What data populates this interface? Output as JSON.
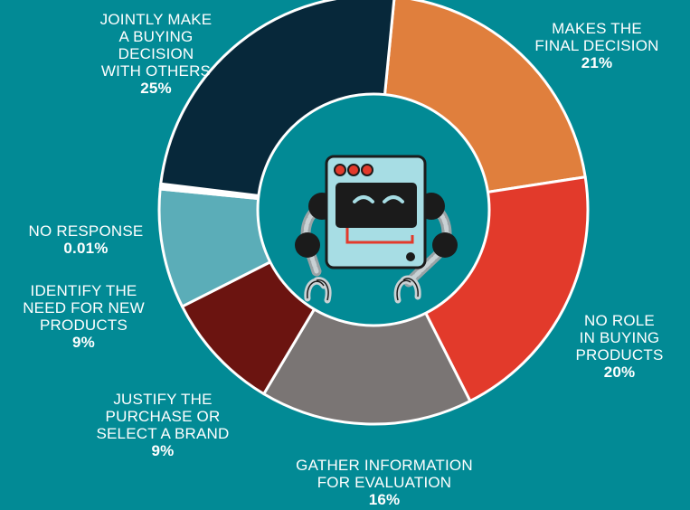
{
  "chart_data": {
    "type": "pie",
    "donut": true,
    "slices": [
      {
        "key": "final",
        "label_lines": [
          "MAKES THE",
          "FINAL DECISION"
        ],
        "value_label": "21%",
        "value": 21,
        "color": "#e07f3d"
      },
      {
        "key": "norole",
        "label_lines": [
          "NO ROLE",
          "IN BUYING",
          "PRODUCTS"
        ],
        "value_label": "20%",
        "value": 20,
        "color": "#e23a2b"
      },
      {
        "key": "gather",
        "label_lines": [
          "GATHER INFORMATION",
          "FOR EVALUATION"
        ],
        "value_label": "16%",
        "value": 16,
        "color": "#7a7574"
      },
      {
        "key": "justify",
        "label_lines": [
          "JUSTIFY THE",
          "PURCHASE OR",
          "SELECT A BRAND"
        ],
        "value_label": "9%",
        "value": 9,
        "color": "#6b1410"
      },
      {
        "key": "identify",
        "label_lines": [
          "IDENTIFY THE",
          "NEED FOR  NEW",
          "PRODUCTS"
        ],
        "value_label": "9%",
        "value": 9,
        "color": "#5badb8"
      },
      {
        "key": "noresp",
        "label_lines": [
          "NO RESPONSE"
        ],
        "value_label": "0.01%",
        "value": 0.01,
        "color": "#ffffff"
      },
      {
        "key": "jointly",
        "label_lines": [
          "JOINTLY MAKE",
          "A BUYING",
          "DECISION",
          "WITH OTHERS"
        ],
        "value_label": "25%",
        "value": 25,
        "color": "#07283a"
      }
    ]
  },
  "colors": {
    "background": "#028a95",
    "separator": "#ffffff",
    "robot_body": "#a7dde4",
    "robot_screen": "#1b1b1b",
    "robot_accent": "#e23a2b"
  },
  "icons": {
    "center": "robot-icon"
  }
}
